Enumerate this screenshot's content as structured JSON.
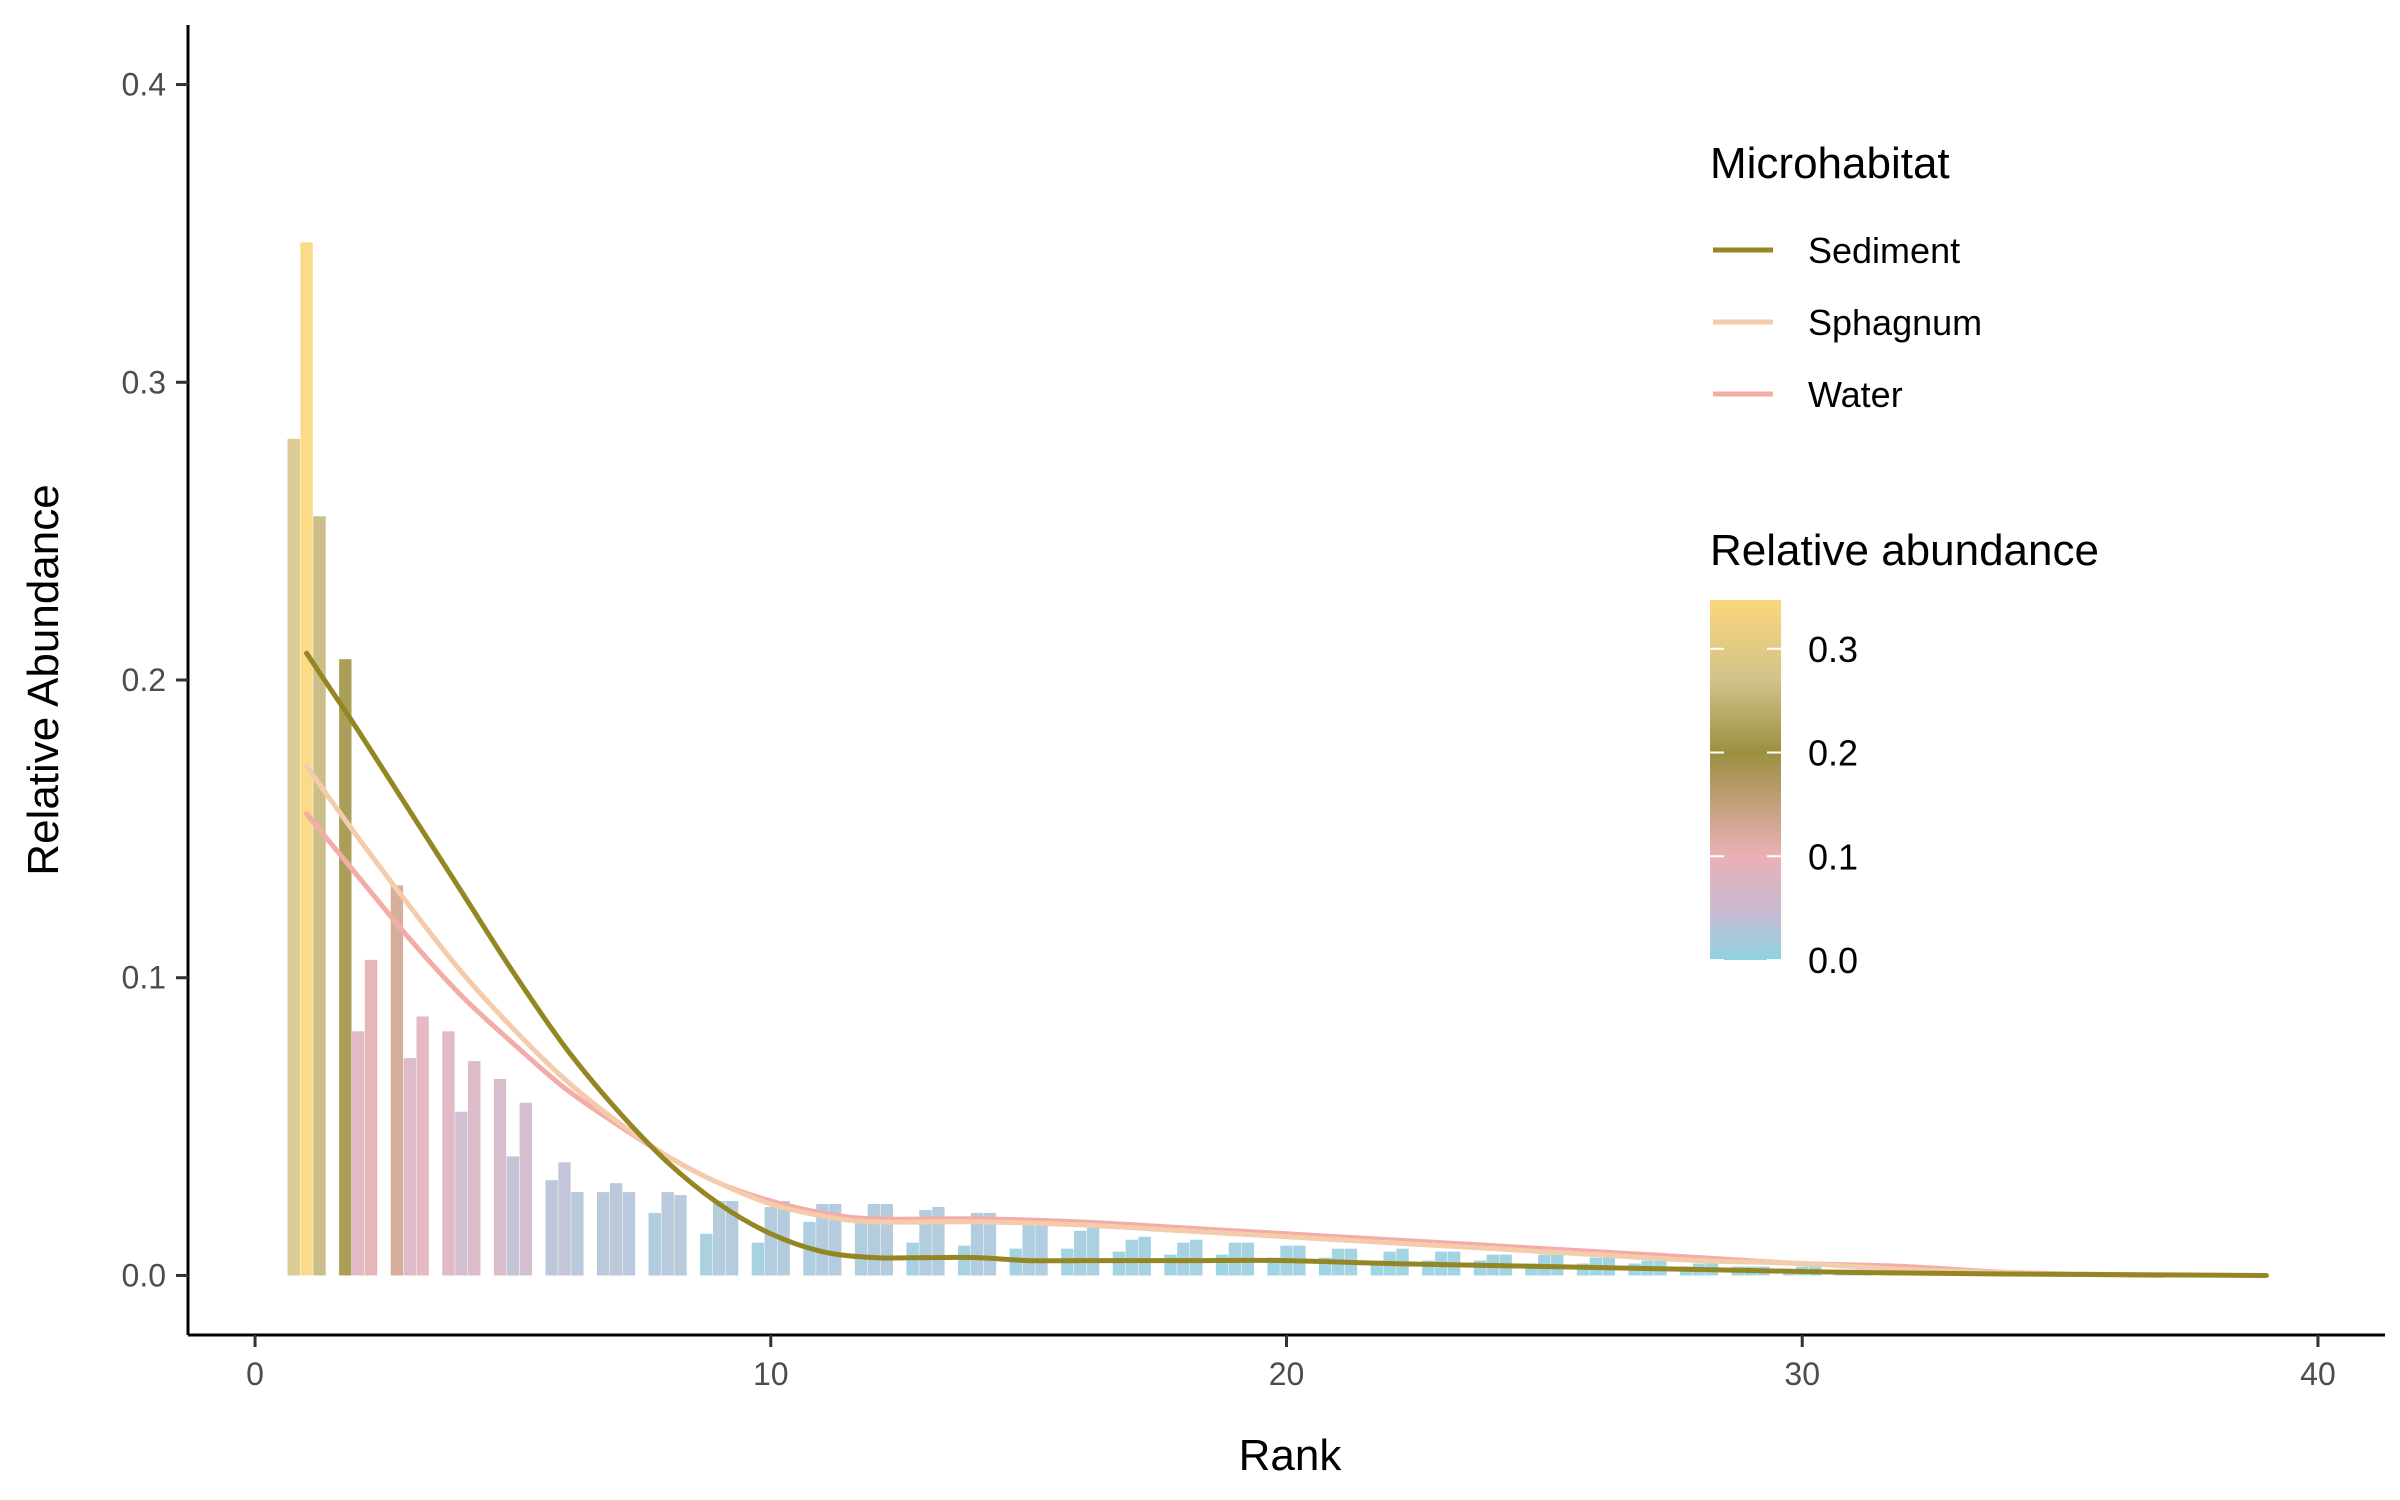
{
  "chart_data": {
    "type": "bar",
    "xlabel": "Rank",
    "ylabel": "Relative Abundance",
    "xlim": [
      -1.3,
      41.3
    ],
    "ylim": [
      -0.02,
      0.42
    ],
    "xticks": [
      0,
      10,
      20,
      30,
      40
    ],
    "xtick_labels": [
      "0",
      "10",
      "20",
      "30",
      "40"
    ],
    "yticks": [
      0.0,
      0.1,
      0.2,
      0.3,
      0.4
    ],
    "ytick_labels": [
      "0.0",
      "0.1",
      "0.2",
      "0.3",
      "0.4"
    ],
    "grid": false,
    "bars": [
      {
        "x": 0.75,
        "y": 0.281
      },
      {
        "x": 1.0,
        "y": 0.347
      },
      {
        "x": 1.25,
        "y": 0.255
      },
      {
        "x": 1.75,
        "y": 0.207
      },
      {
        "x": 2.0,
        "y": 0.082
      },
      {
        "x": 2.25,
        "y": 0.106
      },
      {
        "x": 2.75,
        "y": 0.131
      },
      {
        "x": 3.0,
        "y": 0.073
      },
      {
        "x": 3.25,
        "y": 0.087
      },
      {
        "x": 3.75,
        "y": 0.082
      },
      {
        "x": 4.0,
        "y": 0.055
      },
      {
        "x": 4.25,
        "y": 0.072
      },
      {
        "x": 4.75,
        "y": 0.066
      },
      {
        "x": 5.0,
        "y": 0.04
      },
      {
        "x": 5.25,
        "y": 0.058
      },
      {
        "x": 5.75,
        "y": 0.032
      },
      {
        "x": 6.0,
        "y": 0.038
      },
      {
        "x": 6.25,
        "y": 0.028
      },
      {
        "x": 6.75,
        "y": 0.028
      },
      {
        "x": 7.0,
        "y": 0.031
      },
      {
        "x": 7.25,
        "y": 0.028
      },
      {
        "x": 7.75,
        "y": 0.021
      },
      {
        "x": 8.0,
        "y": 0.028
      },
      {
        "x": 8.25,
        "y": 0.027
      },
      {
        "x": 8.75,
        "y": 0.014
      },
      {
        "x": 9.0,
        "y": 0.025
      },
      {
        "x": 9.25,
        "y": 0.025
      },
      {
        "x": 9.75,
        "y": 0.011
      },
      {
        "x": 10.0,
        "y": 0.023
      },
      {
        "x": 10.25,
        "y": 0.025
      },
      {
        "x": 10.75,
        "y": 0.018
      },
      {
        "x": 11.0,
        "y": 0.024
      },
      {
        "x": 11.25,
        "y": 0.024
      },
      {
        "x": 11.75,
        "y": 0.018
      },
      {
        "x": 12.0,
        "y": 0.024
      },
      {
        "x": 12.25,
        "y": 0.024
      },
      {
        "x": 12.75,
        "y": 0.011
      },
      {
        "x": 13.0,
        "y": 0.022
      },
      {
        "x": 13.25,
        "y": 0.023
      },
      {
        "x": 13.75,
        "y": 0.01
      },
      {
        "x": 14.0,
        "y": 0.021
      },
      {
        "x": 14.25,
        "y": 0.021
      },
      {
        "x": 14.75,
        "y": 0.009
      },
      {
        "x": 15.0,
        "y": 0.018
      },
      {
        "x": 15.25,
        "y": 0.019
      },
      {
        "x": 15.75,
        "y": 0.009
      },
      {
        "x": 16.0,
        "y": 0.015
      },
      {
        "x": 16.25,
        "y": 0.016
      },
      {
        "x": 16.75,
        "y": 0.008
      },
      {
        "x": 17.0,
        "y": 0.012
      },
      {
        "x": 17.25,
        "y": 0.013
      },
      {
        "x": 17.75,
        "y": 0.007
      },
      {
        "x": 18.0,
        "y": 0.011
      },
      {
        "x": 18.25,
        "y": 0.012
      },
      {
        "x": 18.75,
        "y": 0.007
      },
      {
        "x": 19.0,
        "y": 0.011
      },
      {
        "x": 19.25,
        "y": 0.011
      },
      {
        "x": 19.75,
        "y": 0.006
      },
      {
        "x": 20.0,
        "y": 0.01
      },
      {
        "x": 20.25,
        "y": 0.01
      },
      {
        "x": 20.75,
        "y": 0.006
      },
      {
        "x": 21.0,
        "y": 0.009
      },
      {
        "x": 21.25,
        "y": 0.009
      },
      {
        "x": 21.75,
        "y": 0.005
      },
      {
        "x": 22.0,
        "y": 0.008
      },
      {
        "x": 22.25,
        "y": 0.009
      },
      {
        "x": 22.75,
        "y": 0.005
      },
      {
        "x": 23.0,
        "y": 0.008
      },
      {
        "x": 23.25,
        "y": 0.008
      },
      {
        "x": 23.75,
        "y": 0.005
      },
      {
        "x": 24.0,
        "y": 0.007
      },
      {
        "x": 24.25,
        "y": 0.007
      },
      {
        "x": 24.75,
        "y": 0.004
      },
      {
        "x": 25.0,
        "y": 0.007
      },
      {
        "x": 25.25,
        "y": 0.007
      },
      {
        "x": 25.75,
        "y": 0.004
      },
      {
        "x": 26.0,
        "y": 0.006
      },
      {
        "x": 26.25,
        "y": 0.006
      },
      {
        "x": 26.75,
        "y": 0.004
      },
      {
        "x": 27.0,
        "y": 0.005
      },
      {
        "x": 27.25,
        "y": 0.005
      },
      {
        "x": 27.75,
        "y": 0.003
      },
      {
        "x": 28.0,
        "y": 0.004
      },
      {
        "x": 28.25,
        "y": 0.004
      },
      {
        "x": 28.75,
        "y": 0.003
      },
      {
        "x": 29.0,
        "y": 0.003
      },
      {
        "x": 29.25,
        "y": 0.003
      },
      {
        "x": 29.75,
        "y": 0.002
      },
      {
        "x": 30.0,
        "y": 0.003
      },
      {
        "x": 30.25,
        "y": 0.003
      },
      {
        "x": 30.75,
        "y": 0.002
      },
      {
        "x": 31.0,
        "y": 0.002
      },
      {
        "x": 31.25,
        "y": 0.002
      },
      {
        "x": 31.75,
        "y": 0.002
      },
      {
        "x": 32.0,
        "y": 0.002
      },
      {
        "x": 32.25,
        "y": 0.002
      },
      {
        "x": 32.75,
        "y": 0.001
      },
      {
        "x": 33.0,
        "y": 0.001
      },
      {
        "x": 33.25,
        "y": 0.001
      },
      {
        "x": 33.75,
        "y": 0.001
      },
      {
        "x": 34.0,
        "y": 0.001
      },
      {
        "x": 34.25,
        "y": 0.001
      },
      {
        "x": 34.75,
        "y": 0.001
      },
      {
        "x": 35.0,
        "y": 0.001
      },
      {
        "x": 35.25,
        "y": 0.001
      },
      {
        "x": 35.75,
        "y": 0.001
      },
      {
        "x": 36.0,
        "y": 0.001
      },
      {
        "x": 36.25,
        "y": 0.001
      }
    ],
    "bar_color_scale": {
      "stops": [
        {
          "value": 0.0,
          "color": "#8fd3e3"
        },
        {
          "value": 0.05,
          "color": "#cbb9cf"
        },
        {
          "value": 0.1,
          "color": "#eab0b6"
        },
        {
          "value": 0.2,
          "color": "#9b9040"
        },
        {
          "value": 0.27,
          "color": "#d2c28b"
        },
        {
          "value": 0.347,
          "color": "#fbd77a"
        }
      ]
    },
    "series": [
      {
        "name": "Sediment",
        "color": "#958624",
        "x": [
          1,
          1.5,
          2,
          3,
          4,
          5,
          6,
          7,
          8,
          9,
          10,
          11,
          12,
          13,
          14,
          15,
          16,
          18,
          20,
          22,
          25,
          28,
          31,
          34,
          37,
          39
        ],
        "y": [
          0.209,
          0.196,
          0.183,
          0.156,
          0.129,
          0.102,
          0.077,
          0.056,
          0.038,
          0.024,
          0.014,
          0.008,
          0.006,
          0.006,
          0.006,
          0.005,
          0.005,
          0.005,
          0.005,
          0.004,
          0.003,
          0.002,
          0.001,
          0.0005,
          0.0002,
          0.0
        ]
      },
      {
        "name": "Sphagnum",
        "color": "#f5ccab",
        "x": [
          1,
          2,
          3,
          4,
          5,
          6,
          7,
          8,
          9,
          10,
          11,
          12,
          14,
          16,
          18,
          20,
          22,
          24,
          26,
          28,
          30,
          32,
          34,
          36,
          37
        ],
        "y": [
          0.171,
          0.147,
          0.124,
          0.102,
          0.083,
          0.066,
          0.052,
          0.04,
          0.031,
          0.024,
          0.02,
          0.018,
          0.018,
          0.017,
          0.015,
          0.013,
          0.011,
          0.009,
          0.007,
          0.005,
          0.004,
          0.002,
          0.001,
          0.0002,
          0.0
        ]
      },
      {
        "name": "Water",
        "color": "#f4aca7",
        "x": [
          1,
          2,
          3,
          4,
          5,
          6,
          7,
          8,
          9,
          10,
          11,
          12,
          14,
          16,
          18,
          20,
          22,
          24,
          26,
          28,
          30,
          32,
          34,
          36,
          37
        ],
        "y": [
          0.155,
          0.134,
          0.113,
          0.094,
          0.078,
          0.063,
          0.051,
          0.04,
          0.031,
          0.025,
          0.021,
          0.019,
          0.019,
          0.018,
          0.016,
          0.014,
          0.012,
          0.01,
          0.008,
          0.006,
          0.004,
          0.003,
          0.001,
          0.0003,
          0.0
        ]
      }
    ],
    "legend": {
      "placement": "right",
      "line_title": "Microhabitat",
      "line_items": [
        {
          "label": "Sediment",
          "color": "#958624"
        },
        {
          "label": "Sphagnum",
          "color": "#f5ccab"
        },
        {
          "label": "Water",
          "color": "#f4aca7"
        }
      ],
      "colorbar_title": "Relative abundance",
      "colorbar_ticks": [
        0.0,
        0.1,
        0.2,
        0.3
      ],
      "colorbar_tick_labels": [
        "0.0",
        "0.1",
        "0.2",
        "0.3"
      ],
      "colorbar_range": [
        0.0,
        0.347
      ]
    }
  }
}
